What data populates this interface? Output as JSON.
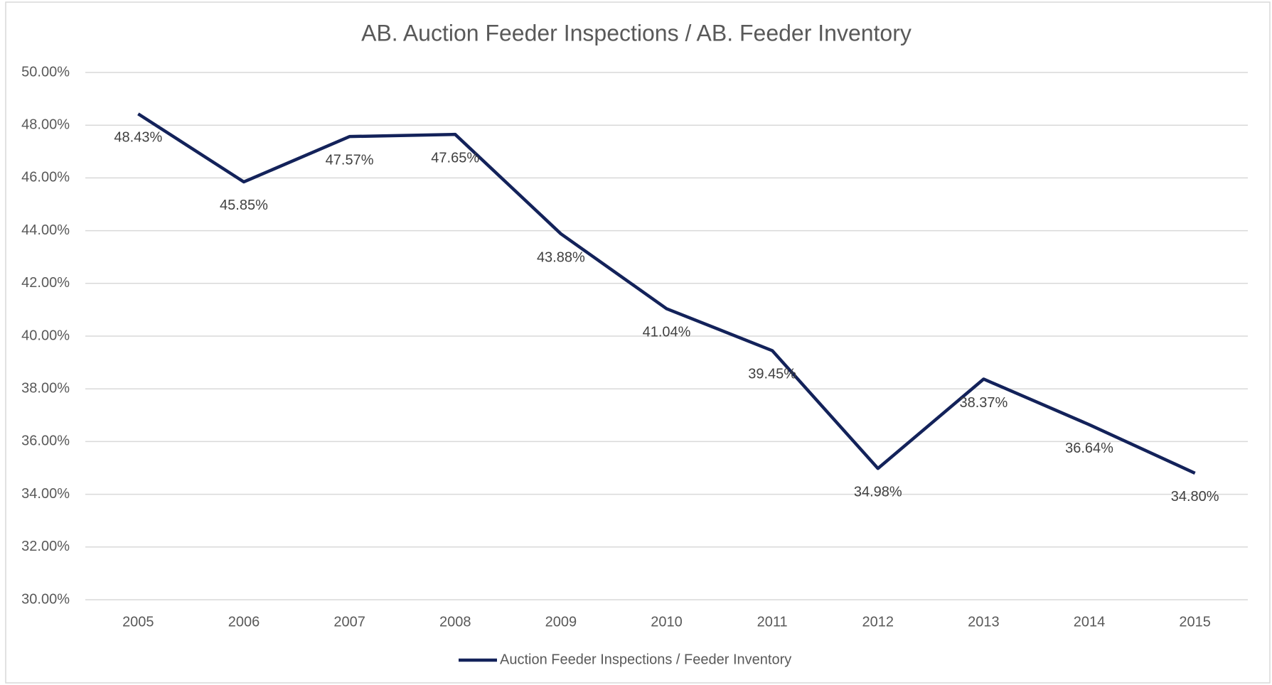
{
  "chart_data": {
    "type": "line",
    "title": "AB. Auction Feeder Inspections / AB. Feeder Inventory",
    "categories": [
      "2005",
      "2006",
      "2007",
      "2008",
      "2009",
      "2010",
      "2011",
      "2012",
      "2013",
      "2014",
      "2015"
    ],
    "series": [
      {
        "name": "Auction Feeder Inspections / Feeder Inventory",
        "color": "#13225a",
        "values": [
          48.43,
          45.85,
          47.57,
          47.65,
          43.88,
          41.04,
          39.45,
          34.98,
          38.37,
          36.64,
          34.8
        ],
        "value_labels": [
          "48.43%",
          "45.85%",
          "47.57%",
          "47.65%",
          "43.88%",
          "41.04%",
          "39.45%",
          "34.98%",
          "38.37%",
          "36.64%",
          "34.80%"
        ]
      }
    ],
    "ylim": [
      30,
      50
    ],
    "yticks": [
      {
        "value": 30,
        "label": "30.00%"
      },
      {
        "value": 32,
        "label": "32.00%"
      },
      {
        "value": 34,
        "label": "34.00%"
      },
      {
        "value": 36,
        "label": "36.00%"
      },
      {
        "value": 38,
        "label": "38.00%"
      },
      {
        "value": 40,
        "label": "40.00%"
      },
      {
        "value": 42,
        "label": "42.00%"
      },
      {
        "value": 44,
        "label": "44.00%"
      },
      {
        "value": 46,
        "label": "46.00%"
      },
      {
        "value": 48,
        "label": "48.00%"
      },
      {
        "value": 50,
        "label": "50.00%"
      }
    ],
    "grid": true,
    "legend": "bottom"
  }
}
